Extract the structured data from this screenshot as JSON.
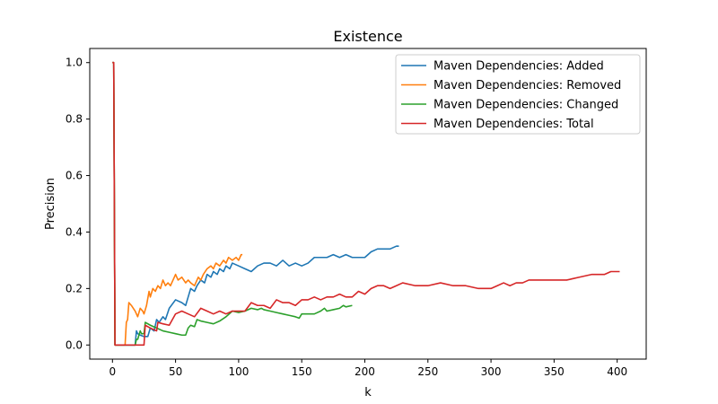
{
  "chart_data": {
    "type": "line",
    "title": "Existence",
    "xlabel": "k",
    "ylabel": "Precision",
    "xlim": [
      -18,
      423
    ],
    "ylim": [
      -0.05,
      1.05
    ],
    "xticks": [
      "0",
      "50",
      "100",
      "150",
      "200",
      "250",
      "300",
      "350",
      "400"
    ],
    "yticks": [
      "0.0",
      "0.2",
      "0.4",
      "0.6",
      "0.8",
      "1.0"
    ],
    "grid": false,
    "legend_position": "top-right",
    "series": [
      {
        "name": "Maven Dependencies: Added",
        "color": "#1f77b4",
        "x": [
          0,
          1,
          2,
          5,
          10,
          15,
          18,
          19,
          20,
          22,
          25,
          28,
          30,
          33,
          35,
          37,
          40,
          42,
          45,
          50,
          55,
          58,
          60,
          62,
          65,
          67,
          70,
          73,
          75,
          78,
          80,
          83,
          85,
          88,
          90,
          93,
          95,
          100,
          105,
          110,
          115,
          120,
          125,
          130,
          135,
          140,
          145,
          150,
          155,
          160,
          165,
          170,
          175,
          180,
          185,
          190,
          195,
          200,
          205,
          210,
          215,
          220,
          225,
          227
        ],
        "y": [
          1.0,
          1.0,
          0.0,
          0.0,
          0.0,
          0.0,
          0.0,
          0.05,
          0.04,
          0.035,
          0.03,
          0.03,
          0.06,
          0.05,
          0.09,
          0.08,
          0.1,
          0.09,
          0.13,
          0.16,
          0.15,
          0.14,
          0.17,
          0.2,
          0.19,
          0.21,
          0.23,
          0.22,
          0.25,
          0.24,
          0.26,
          0.25,
          0.27,
          0.26,
          0.28,
          0.27,
          0.29,
          0.28,
          0.27,
          0.26,
          0.28,
          0.29,
          0.29,
          0.28,
          0.3,
          0.28,
          0.29,
          0.28,
          0.29,
          0.31,
          0.31,
          0.31,
          0.32,
          0.31,
          0.32,
          0.31,
          0.31,
          0.31,
          0.33,
          0.34,
          0.34,
          0.34,
          0.35,
          0.35
        ]
      },
      {
        "name": "Maven Dependencies: Removed",
        "color": "#ff7f0e",
        "x": [
          0,
          1,
          2,
          5,
          8,
          10,
          11,
          12,
          13,
          15,
          18,
          20,
          22,
          24,
          25,
          27,
          29,
          30,
          32,
          34,
          36,
          38,
          40,
          42,
          44,
          46,
          48,
          50,
          52,
          55,
          58,
          60,
          62,
          65,
          68,
          70,
          72,
          75,
          78,
          80,
          82,
          85,
          88,
          90,
          92,
          95,
          98,
          100,
          102,
          103
        ],
        "y": [
          1.0,
          1.0,
          0.0,
          0.0,
          0.0,
          0.0,
          0.08,
          0.09,
          0.15,
          0.14,
          0.12,
          0.1,
          0.13,
          0.12,
          0.11,
          0.14,
          0.19,
          0.17,
          0.2,
          0.19,
          0.21,
          0.2,
          0.23,
          0.21,
          0.22,
          0.21,
          0.23,
          0.25,
          0.23,
          0.24,
          0.22,
          0.23,
          0.22,
          0.21,
          0.24,
          0.23,
          0.25,
          0.27,
          0.28,
          0.27,
          0.29,
          0.28,
          0.3,
          0.29,
          0.31,
          0.3,
          0.31,
          0.3,
          0.32,
          0.32
        ]
      },
      {
        "name": "Maven Dependencies: Changed",
        "color": "#2ca02c",
        "x": [
          0,
          1,
          2,
          5,
          10,
          15,
          18,
          19,
          20,
          22,
          23,
          25,
          26,
          30,
          35,
          40,
          45,
          50,
          55,
          58,
          60,
          62,
          65,
          67,
          70,
          75,
          80,
          85,
          90,
          95,
          100,
          105,
          110,
          115,
          118,
          120,
          125,
          130,
          135,
          140,
          145,
          148,
          150,
          155,
          160,
          165,
          168,
          170,
          175,
          180,
          183,
          185,
          190
        ],
        "y": [
          1.0,
          1.0,
          0.0,
          0.0,
          0.0,
          0.0,
          0.0,
          0.02,
          0.02,
          0.05,
          0.04,
          0.04,
          0.08,
          0.07,
          0.06,
          0.05,
          0.045,
          0.04,
          0.035,
          0.035,
          0.06,
          0.07,
          0.065,
          0.09,
          0.085,
          0.08,
          0.075,
          0.085,
          0.1,
          0.12,
          0.115,
          0.12,
          0.13,
          0.125,
          0.13,
          0.125,
          0.12,
          0.115,
          0.11,
          0.105,
          0.1,
          0.095,
          0.11,
          0.11,
          0.11,
          0.12,
          0.13,
          0.12,
          0.125,
          0.13,
          0.14,
          0.135,
          0.14
        ]
      },
      {
        "name": "Maven Dependencies: Total",
        "color": "#d62728",
        "x": [
          0,
          1,
          2,
          5,
          10,
          15,
          20,
          25,
          26,
          30,
          35,
          36,
          40,
          45,
          50,
          55,
          60,
          65,
          70,
          75,
          80,
          85,
          90,
          95,
          100,
          105,
          110,
          115,
          120,
          125,
          130,
          135,
          140,
          145,
          150,
          155,
          160,
          165,
          170,
          175,
          180,
          185,
          190,
          195,
          200,
          205,
          210,
          215,
          220,
          225,
          230,
          240,
          250,
          260,
          270,
          280,
          290,
          300,
          305,
          310,
          315,
          320,
          325,
          330,
          340,
          350,
          360,
          370,
          380,
          390,
          395,
          400,
          402
        ],
        "y": [
          1.0,
          1.0,
          0.0,
          0.0,
          0.0,
          0.0,
          0.0,
          0.0,
          0.07,
          0.06,
          0.05,
          0.08,
          0.075,
          0.07,
          0.11,
          0.12,
          0.11,
          0.1,
          0.13,
          0.12,
          0.11,
          0.12,
          0.11,
          0.12,
          0.12,
          0.12,
          0.15,
          0.14,
          0.14,
          0.13,
          0.16,
          0.15,
          0.15,
          0.14,
          0.16,
          0.16,
          0.17,
          0.16,
          0.17,
          0.17,
          0.18,
          0.17,
          0.17,
          0.19,
          0.18,
          0.2,
          0.21,
          0.21,
          0.2,
          0.21,
          0.22,
          0.21,
          0.21,
          0.22,
          0.21,
          0.21,
          0.2,
          0.2,
          0.21,
          0.22,
          0.21,
          0.22,
          0.22,
          0.23,
          0.23,
          0.23,
          0.23,
          0.24,
          0.25,
          0.25,
          0.26,
          0.26,
          0.26
        ]
      }
    ]
  }
}
